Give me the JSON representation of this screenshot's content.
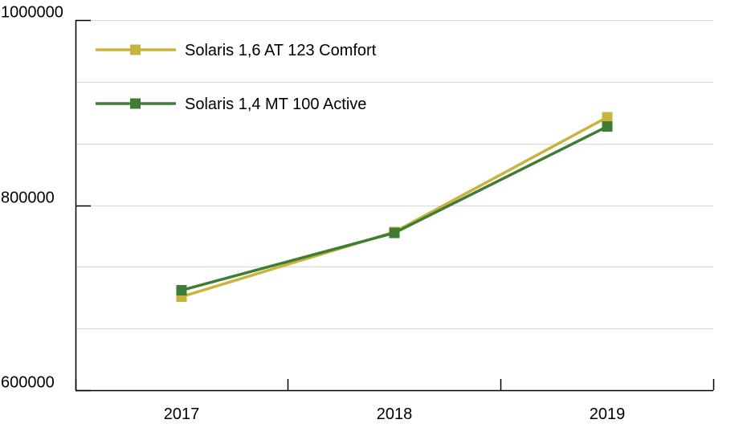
{
  "chart_data": {
    "type": "line",
    "categories": [
      "2017",
      "2018",
      "2019"
    ],
    "series": [
      {
        "name": "Solaris 1,6 AT 123 Comfort",
        "color": "#c8b43c",
        "values": [
          701000,
          771000,
          895000
        ]
      },
      {
        "name": "Solaris 1,4 MT 100 Active",
        "color": "#3f7d35",
        "values": [
          708000,
          770000,
          885000
        ]
      }
    ],
    "ylim": [
      600000,
      1000000
    ],
    "y_major_ticks": [
      600000,
      800000,
      1000000
    ],
    "y_tick_labels": [
      "600000",
      "800000",
      "1000000"
    ],
    "y_grid_step": 66667,
    "grid": true,
    "legend_position": "top-left",
    "title": "",
    "xlabel": "",
    "ylabel": ""
  }
}
